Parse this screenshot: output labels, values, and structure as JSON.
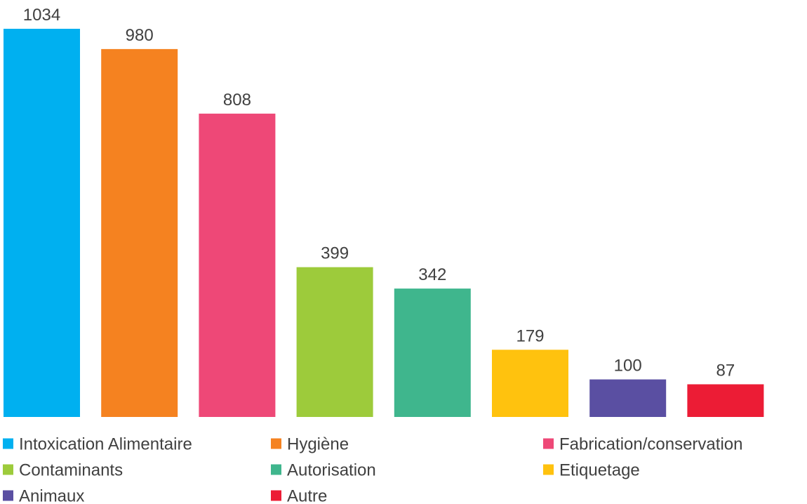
{
  "chart_data": {
    "type": "bar",
    "categories": [
      "Intoxication Alimentaire",
      "Hygiène",
      "Fabrication/conservation",
      "Contaminants",
      "Autorisation",
      "Etiquetage",
      "Animaux",
      "Autre"
    ],
    "values": [
      1034,
      980,
      808,
      399,
      342,
      179,
      100,
      87
    ],
    "data_labels": [
      "1034",
      "980",
      "808",
      "399",
      "342",
      "179",
      "100",
      "87"
    ],
    "colors": [
      "#00B0F0",
      "#F58220",
      "#EE4877",
      "#9DCB3B",
      "#3FB68D",
      "#FFC20E",
      "#5A4FA2",
      "#EC1C35"
    ],
    "title": "",
    "xlabel": "",
    "ylabel": "",
    "ylim": [
      0,
      1034
    ],
    "grid": false,
    "legend_position": "bottom"
  }
}
